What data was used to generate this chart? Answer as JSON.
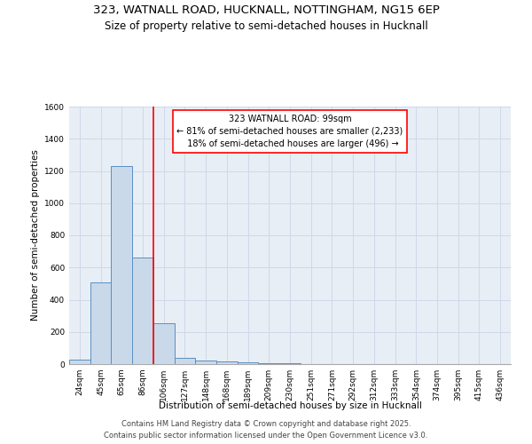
{
  "title_line1": "323, WATNALL ROAD, HUCKNALL, NOTTINGHAM, NG15 6EP",
  "title_line2": "Size of property relative to semi-detached houses in Hucknall",
  "xlabel": "Distribution of semi-detached houses by size in Hucknall",
  "ylabel": "Number of semi-detached properties",
  "categories": [
    "24sqm",
    "45sqm",
    "65sqm",
    "86sqm",
    "106sqm",
    "127sqm",
    "148sqm",
    "168sqm",
    "189sqm",
    "209sqm",
    "230sqm",
    "251sqm",
    "271sqm",
    "292sqm",
    "312sqm",
    "333sqm",
    "354sqm",
    "374sqm",
    "395sqm",
    "415sqm",
    "436sqm"
  ],
  "values": [
    30,
    510,
    1230,
    660,
    255,
    40,
    20,
    15,
    10,
    4,
    3,
    2,
    1,
    1,
    1,
    0,
    0,
    0,
    0,
    0,
    0
  ],
  "bar_color": "#c9d9ea",
  "bar_edge_color": "#5a8fc3",
  "grid_color": "#d0d8e8",
  "background_color": "#e8eef5",
  "annotation_text": "323 WATNALL ROAD: 99sqm\n← 81% of semi-detached houses are smaller (2,233)\n  18% of semi-detached houses are larger (496) →",
  "red_line_x": 3.52,
  "ylim": [
    0,
    1600
  ],
  "yticks": [
    0,
    200,
    400,
    600,
    800,
    1000,
    1200,
    1400,
    1600
  ],
  "footer_line1": "Contains HM Land Registry data © Crown copyright and database right 2025.",
  "footer_line2": "Contains public sector information licensed under the Open Government Licence v3.0.",
  "title_fontsize": 9.5,
  "subtitle_fontsize": 8.5,
  "axis_label_fontsize": 7.5,
  "tick_fontsize": 6.5,
  "annotation_fontsize": 7,
  "footer_fontsize": 6
}
